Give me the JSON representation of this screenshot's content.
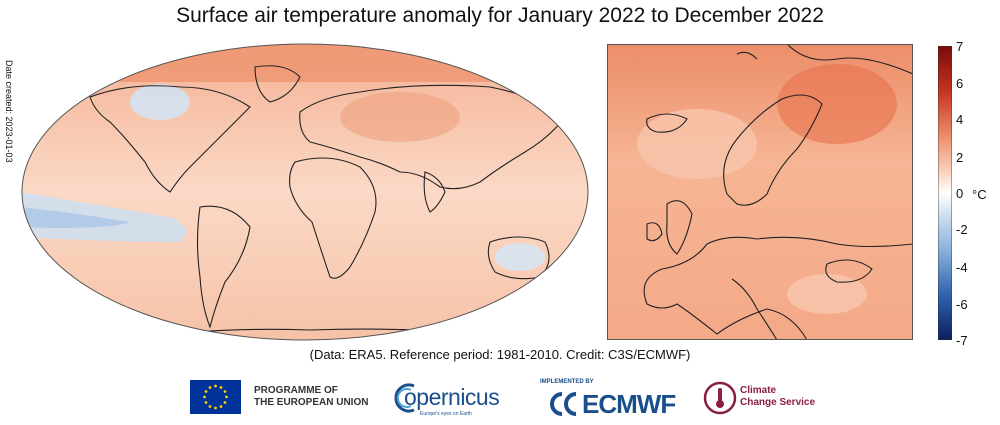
{
  "title": "Surface air temperature anomaly for January 2022 to December 2022",
  "date_created": "Date created: 2023-01-03",
  "caption": "(Data: ERA5.  Reference period: 1981-2010.  Credit: C3S/ECMWF)",
  "colorbar": {
    "ticks": [
      "7",
      "6",
      "4",
      "2",
      "0",
      "-2",
      "-4",
      "-6",
      "-7"
    ],
    "unit": "°C",
    "colors": [
      "#0b2a6f",
      "#2e5fa8",
      "#7fa9d6",
      "#dce8f3",
      "#ffffff",
      "#fbd8c3",
      "#f2a07d",
      "#d7533b",
      "#8b0d0d"
    ]
  },
  "logos": {
    "eu_line1": "PROGRAMME OF",
    "eu_line2": "THE EUROPEAN UNION",
    "copernicus": "opernicus",
    "copernicus_tagline": "Europe's eyes on Earth",
    "ecmwf_implemented": "IMPLEMENTED BY",
    "ecmwf": "ECMWF",
    "c3s_line1": "Climate",
    "c3s_line2": "Change Service"
  }
}
